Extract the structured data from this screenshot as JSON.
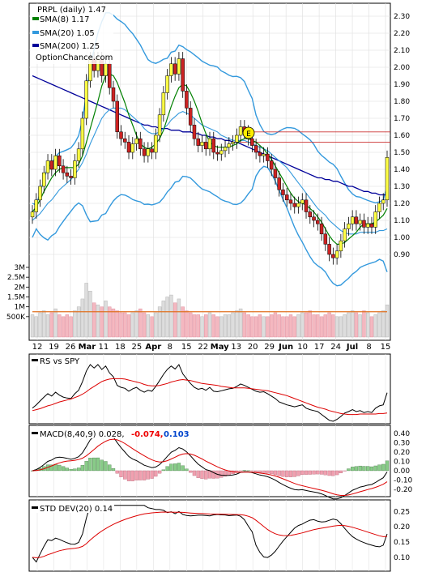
{
  "chart_data": [
    {
      "type": "candlestick",
      "legend": [
        {
          "name": "PRPL (daily) 1.47",
          "color": "#000000",
          "swatch": false
        },
        {
          "name": "SMA(8) 1.17",
          "color": "#008000",
          "swatch": true
        },
        {
          "name": "SMA(20) 1.05",
          "color": "#3399dd",
          "swatch": true
        },
        {
          "name": "SMA(200) 1.25",
          "color": "#000099",
          "swatch": true
        }
      ],
      "watermark": "OptionChance.com",
      "event_marker": "E",
      "y_ticks": [
        "2.30",
        "2.20",
        "2.10",
        "2.00",
        "1.90",
        "1.80",
        "1.70",
        "1.60",
        "1.50",
        "1.40",
        "1.30",
        "1.20",
        "1.10",
        "1.00",
        "0.90"
      ],
      "ylim": [
        0.8,
        2.33
      ],
      "x_ticks": [
        "12",
        "19",
        "26",
        "Mar",
        "11",
        "18",
        "25",
        "Apr",
        "8",
        "15",
        "22",
        "May",
        "13",
        "20",
        "29",
        "Jun",
        "10",
        "17",
        "24",
        "Jul",
        "8",
        "15"
      ],
      "volume_ticks": [
        "3M",
        "2.5M",
        "2M",
        "1.5M",
        "1M",
        "500K"
      ],
      "horizontal_levels": [
        1.62,
        1.56
      ],
      "price_close": [
        1.15,
        1.22,
        1.3,
        1.38,
        1.45,
        1.4,
        1.48,
        1.42,
        1.38,
        1.36,
        1.35,
        1.45,
        1.52,
        1.7,
        1.92,
        2.05,
        1.98,
        2.05,
        1.95,
        2.02,
        1.88,
        1.8,
        1.62,
        1.58,
        1.56,
        1.5,
        1.55,
        1.58,
        1.52,
        1.48,
        1.52,
        1.5,
        1.6,
        1.72,
        1.85,
        1.95,
        2.02,
        1.96,
        2.05,
        1.86,
        1.76,
        1.66,
        1.58,
        1.54,
        1.56,
        1.52,
        1.58,
        1.5,
        1.49,
        1.51,
        1.53,
        1.55,
        1.56,
        1.6,
        1.65,
        1.62,
        1.58,
        1.54,
        1.5,
        1.48,
        1.49,
        1.45,
        1.4,
        1.35,
        1.28,
        1.25,
        1.22,
        1.2,
        1.18,
        1.2,
        1.22,
        1.15,
        1.12,
        1.1,
        1.08,
        1.02,
        0.96,
        0.9,
        0.88,
        0.92,
        0.98,
        1.05,
        1.08,
        1.12,
        1.08,
        1.1,
        1.06,
        1.08,
        1.06,
        1.15,
        1.2,
        1.22,
        1.47
      ],
      "sma8": [
        1.15,
        1.18,
        1.22,
        1.27,
        1.31,
        1.35,
        1.38,
        1.4,
        1.41,
        1.41,
        1.41,
        1.41,
        1.43,
        1.48,
        1.56,
        1.64,
        1.72,
        1.8,
        1.89,
        1.95,
        1.96,
        1.95,
        1.91,
        1.85,
        1.79,
        1.72,
        1.66,
        1.6,
        1.55,
        1.53,
        1.52,
        1.53,
        1.55,
        1.58,
        1.63,
        1.7,
        1.77,
        1.83,
        1.88,
        1.9,
        1.89,
        1.85,
        1.8,
        1.74,
        1.67,
        1.61,
        1.56,
        1.54,
        1.53,
        1.53,
        1.53,
        1.53,
        1.54,
        1.55,
        1.57,
        1.58,
        1.58,
        1.57,
        1.56,
        1.54,
        1.52,
        1.49,
        1.46,
        1.42,
        1.38,
        1.34,
        1.3,
        1.26,
        1.23,
        1.21,
        1.2,
        1.19,
        1.17,
        1.15,
        1.12,
        1.09,
        1.05,
        1.01,
        0.98,
        0.96,
        0.96,
        0.97,
        0.99,
        1.01,
        1.03,
        1.06,
        1.08,
        1.08,
        1.08,
        1.09,
        1.11,
        1.13,
        1.17
      ],
      "sma20": [
        1.1,
        1.12,
        1.14,
        1.17,
        1.2,
        1.22,
        1.25,
        1.28,
        1.3,
        1.32,
        1.34,
        1.37,
        1.4,
        1.44,
        1.49,
        1.55,
        1.6,
        1.65,
        1.7,
        1.73,
        1.75,
        1.76,
        1.76,
        1.76,
        1.75,
        1.73,
        1.71,
        1.69,
        1.67,
        1.64,
        1.62,
        1.61,
        1.61,
        1.62,
        1.64,
        1.66,
        1.69,
        1.71,
        1.73,
        1.74,
        1.73,
        1.72,
        1.7,
        1.68,
        1.66,
        1.65,
        1.64,
        1.63,
        1.62,
        1.6,
        1.59,
        1.58,
        1.57,
        1.57,
        1.57,
        1.57,
        1.56,
        1.55,
        1.54,
        1.53,
        1.52,
        1.51,
        1.49,
        1.47,
        1.45,
        1.43,
        1.41,
        1.38,
        1.35,
        1.32,
        1.29,
        1.26,
        1.23,
        1.2,
        1.17,
        1.15,
        1.13,
        1.1,
        1.08,
        1.06,
        1.04,
        1.03,
        1.02,
        1.02,
        1.02,
        1.03,
        1.03,
        1.03,
        1.03,
        1.03,
        1.04,
        1.04,
        1.05
      ],
      "sma200": [
        1.95,
        1.94,
        1.93,
        1.92,
        1.91,
        1.9,
        1.89,
        1.88,
        1.87,
        1.86,
        1.85,
        1.84,
        1.83,
        1.82,
        1.81,
        1.8,
        1.79,
        1.78,
        1.77,
        1.76,
        1.75,
        1.74,
        1.73,
        1.72,
        1.71,
        1.7,
        1.69,
        1.68,
        1.67,
        1.66,
        1.66,
        1.65,
        1.65,
        1.64,
        1.64,
        1.64,
        1.63,
        1.63,
        1.63,
        1.62,
        1.62,
        1.62,
        1.61,
        1.61,
        1.6,
        1.6,
        1.59,
        1.59,
        1.58,
        1.58,
        1.57,
        1.57,
        1.56,
        1.56,
        1.55,
        1.54,
        1.53,
        1.52,
        1.51,
        1.5,
        1.49,
        1.48,
        1.47,
        1.46,
        1.45,
        1.44,
        1.43,
        1.42,
        1.41,
        1.4,
        1.39,
        1.38,
        1.37,
        1.36,
        1.35,
        1.35,
        1.34,
        1.34,
        1.33,
        1.33,
        1.32,
        1.31,
        1.3,
        1.3,
        1.29,
        1.28,
        1.27,
        1.27,
        1.26,
        1.26,
        1.25,
        1.25,
        1.25
      ],
      "volume_millions": [
        0.6,
        0.5,
        0.7,
        0.8,
        0.6,
        0.7,
        0.9,
        0.6,
        0.5,
        0.6,
        0.5,
        0.8,
        1.0,
        1.4,
        2.2,
        1.8,
        1.2,
        1.1,
        1.0,
        1.3,
        1.0,
        0.9,
        0.8,
        0.7,
        0.7,
        0.6,
        0.7,
        0.8,
        0.9,
        0.7,
        0.6,
        0.5,
        0.7,
        1.0,
        1.3,
        1.5,
        1.6,
        1.2,
        1.4,
        1.0,
        0.8,
        0.7,
        0.6,
        0.6,
        0.5,
        0.6,
        0.7,
        0.6,
        0.5,
        0.5,
        0.6,
        0.6,
        0.7,
        0.8,
        0.9,
        0.7,
        0.6,
        0.5,
        0.5,
        0.6,
        0.5,
        0.5,
        0.6,
        0.7,
        0.6,
        0.5,
        0.5,
        0.6,
        0.5,
        0.6,
        0.7,
        0.7,
        0.8,
        0.6,
        0.6,
        0.5,
        0.6,
        0.7,
        0.6,
        0.5,
        0.5,
        0.6,
        0.7,
        0.8,
        0.7,
        0.6,
        0.8,
        0.7,
        0.5,
        0.6,
        0.7,
        0.8,
        1.1
      ],
      "volume_sma_millions": 0.75
    },
    {
      "type": "line",
      "legend": [
        {
          "name": "RS vs SPY",
          "color": "#000000"
        }
      ]
    },
    {
      "type": "bar+line",
      "legend": [
        {
          "name": "MACD(8,40,9) 0.028,",
          "color": "#000000"
        },
        {
          "name": "-0.074,",
          "color": "#ee0000"
        },
        {
          "name": "0.103",
          "color": "#0044cc"
        }
      ],
      "y_ticks": [
        "0.40",
        "0.30",
        "0.20",
        "0.10",
        "0.00",
        "-0.10",
        "-0.20"
      ],
      "ylim": [
        -0.26,
        0.45
      ]
    },
    {
      "type": "line",
      "legend": [
        {
          "name": "STD DEV(20) 0.14",
          "color": "#000000"
        }
      ],
      "y_ticks": [
        "0.25",
        "0.20",
        "0.15",
        "0.10"
      ],
      "ylim": [
        0.06,
        0.28
      ]
    }
  ]
}
